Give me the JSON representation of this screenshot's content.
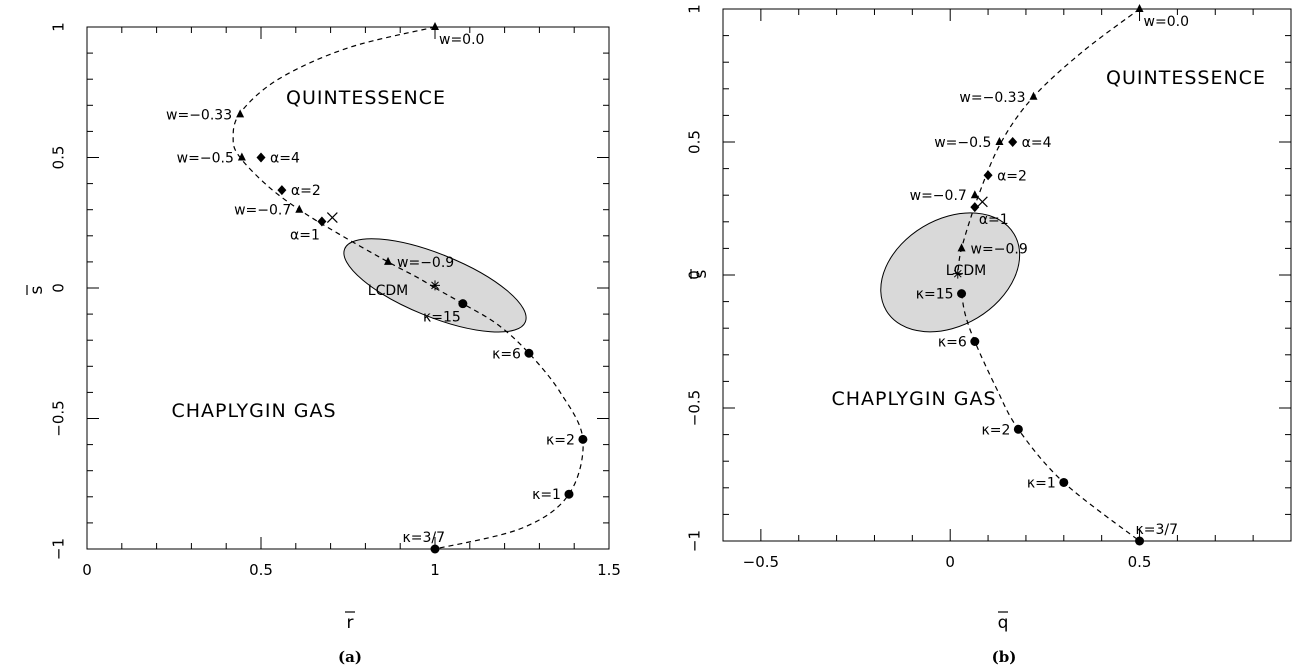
{
  "chart_data": [
    {
      "panel": "(a)",
      "type": "scatter",
      "xlabel": "r",
      "ylabel": "s",
      "xlim": [
        0,
        1.5
      ],
      "ylim": [
        -1,
        1
      ],
      "xticks": [
        "0",
        "0.5",
        "1",
        "1.5"
      ],
      "yticks": [
        "−1",
        "−0.5",
        "0",
        "0.5",
        "1"
      ],
      "region_labels": [
        "QUINTESSENCE",
        "CHAPLYGIN GAS"
      ],
      "ellipse_label": "LCDM",
      "ellipse": {
        "cx": 1.0,
        "cy": 0.01,
        "rx": 0.28,
        "ry": 0.012,
        "angle_deg": -22
      },
      "curve_quintessence": [
        [
          1.0,
          1.0
        ],
        [
          0.75,
          0.92
        ],
        [
          0.55,
          0.8
        ],
        [
          0.44,
          0.67
        ],
        [
          0.42,
          0.57
        ],
        [
          0.44,
          0.5
        ],
        [
          0.52,
          0.39
        ],
        [
          0.61,
          0.3
        ],
        [
          0.72,
          0.21
        ],
        [
          0.865,
          0.1
        ],
        [
          0.95,
          0.04
        ],
        [
          1.0,
          0.0
        ]
      ],
      "curve_chaplygin": [
        [
          1.0,
          0.0
        ],
        [
          1.08,
          -0.06
        ],
        [
          1.18,
          -0.14
        ],
        [
          1.27,
          -0.25
        ],
        [
          1.36,
          -0.4
        ],
        [
          1.425,
          -0.58
        ],
        [
          1.385,
          -0.79
        ],
        [
          1.25,
          -0.92
        ],
        [
          1.0,
          -1.0
        ]
      ],
      "points": [
        {
          "x": 1.0,
          "y": 1.0,
          "marker": "triangle",
          "label": "w=0.0",
          "pos": "below-right"
        },
        {
          "x": 0.44,
          "y": 0.665,
          "marker": "triangle",
          "label": "w=−0.33",
          "pos": "left"
        },
        {
          "x": 0.445,
          "y": 0.5,
          "marker": "triangle",
          "label": "w=−0.5",
          "pos": "left"
        },
        {
          "x": 0.61,
          "y": 0.3,
          "marker": "triangle",
          "label": "w=−0.7",
          "pos": "left"
        },
        {
          "x": 0.865,
          "y": 0.1,
          "marker": "triangle",
          "label": "w=−0.9",
          "pos": "right"
        },
        {
          "x": 0.5,
          "y": 0.5,
          "marker": "diamond",
          "label": "α=4",
          "pos": "right"
        },
        {
          "x": 0.56,
          "y": 0.375,
          "marker": "diamond",
          "label": "α=2",
          "pos": "right"
        },
        {
          "x": 0.675,
          "y": 0.255,
          "marker": "diamond",
          "label": "α=1",
          "pos": "below-left"
        },
        {
          "x": 0.705,
          "y": 0.27,
          "marker": "cross",
          "label": "",
          "pos": "none"
        },
        {
          "x": 1.0,
          "y": 0.01,
          "marker": "star",
          "label": "",
          "pos": "none"
        },
        {
          "x": 1.08,
          "y": -0.06,
          "marker": "circle",
          "label": "κ=15",
          "pos": "below-left"
        },
        {
          "x": 1.27,
          "y": -0.25,
          "marker": "circle",
          "label": "κ=6",
          "pos": "left"
        },
        {
          "x": 1.425,
          "y": -0.58,
          "marker": "circle",
          "label": "κ=2",
          "pos": "left"
        },
        {
          "x": 1.385,
          "y": -0.79,
          "marker": "circle",
          "label": "κ=1",
          "pos": "left"
        },
        {
          "x": 1.0,
          "y": -1.0,
          "marker": "circle",
          "label": "κ=3/7",
          "pos": "above-left"
        }
      ]
    },
    {
      "panel": "(b)",
      "type": "scatter",
      "xlabel": "q",
      "ylabel": "s",
      "xlim": [
        -0.6,
        0.9
      ],
      "ylim": [
        -1,
        1
      ],
      "xticks": [
        "−0.5",
        "0",
        "0.5"
      ],
      "yticks": [
        "−1",
        "−0.5",
        "0",
        "0.5",
        "1"
      ],
      "region_labels": [
        "QUINTESSENCE",
        "CHAPLYGIN GAS"
      ],
      "ellipse_label": "LCDM",
      "ellipse": {
        "cx": 0.0,
        "cy": 0.01,
        "rx": 0.14,
        "ry": 0.028,
        "angle_deg": -59
      },
      "curve_quintessence": [
        [
          0.5,
          1.0
        ],
        [
          0.35,
          0.84
        ],
        [
          0.22,
          0.67
        ],
        [
          0.135,
          0.5
        ],
        [
          0.075,
          0.3
        ],
        [
          0.03,
          0.1
        ],
        [
          0.02,
          0.0
        ]
      ],
      "curve_chaplygin": [
        [
          0.03,
          -0.07
        ],
        [
          0.04,
          -0.15
        ],
        [
          0.065,
          -0.25
        ],
        [
          0.12,
          -0.42
        ],
        [
          0.18,
          -0.58
        ],
        [
          0.3,
          -0.78
        ],
        [
          0.5,
          -1.0
        ]
      ],
      "points": [
        {
          "x": 0.5,
          "y": 1.0,
          "marker": "triangle",
          "label": "w=0.0",
          "pos": "below-right"
        },
        {
          "x": 0.22,
          "y": 0.67,
          "marker": "triangle",
          "label": "w=−0.33",
          "pos": "left"
        },
        {
          "x": 0.13,
          "y": 0.5,
          "marker": "triangle",
          "label": "w=−0.5",
          "pos": "left"
        },
        {
          "x": 0.065,
          "y": 0.3,
          "marker": "triangle",
          "label": "w=−0.7",
          "pos": "left"
        },
        {
          "x": 0.03,
          "y": 0.1,
          "marker": "triangle",
          "label": "w=−0.9",
          "pos": "right"
        },
        {
          "x": 0.165,
          "y": 0.5,
          "marker": "diamond",
          "label": "α=4",
          "pos": "right"
        },
        {
          "x": 0.1,
          "y": 0.375,
          "marker": "diamond",
          "label": "α=2",
          "pos": "right"
        },
        {
          "x": 0.065,
          "y": 0.255,
          "marker": "diamond",
          "label": "α=1",
          "pos": "below-right"
        },
        {
          "x": 0.085,
          "y": 0.275,
          "marker": "cross",
          "label": "",
          "pos": "none"
        },
        {
          "x": 0.02,
          "y": 0.005,
          "marker": "star",
          "label": "",
          "pos": "none"
        },
        {
          "x": 0.03,
          "y": -0.07,
          "marker": "circle",
          "label": "κ=15",
          "pos": "left"
        },
        {
          "x": 0.065,
          "y": -0.25,
          "marker": "circle",
          "label": "κ=6",
          "pos": "left"
        },
        {
          "x": 0.18,
          "y": -0.58,
          "marker": "circle",
          "label": "κ=2",
          "pos": "left"
        },
        {
          "x": 0.3,
          "y": -0.78,
          "marker": "circle",
          "label": "κ=1",
          "pos": "left"
        },
        {
          "x": 0.5,
          "y": -1.0,
          "marker": "circle",
          "label": "κ=3/7",
          "pos": "above-right"
        }
      ]
    }
  ],
  "captions": [
    "(a)",
    "(b)"
  ]
}
